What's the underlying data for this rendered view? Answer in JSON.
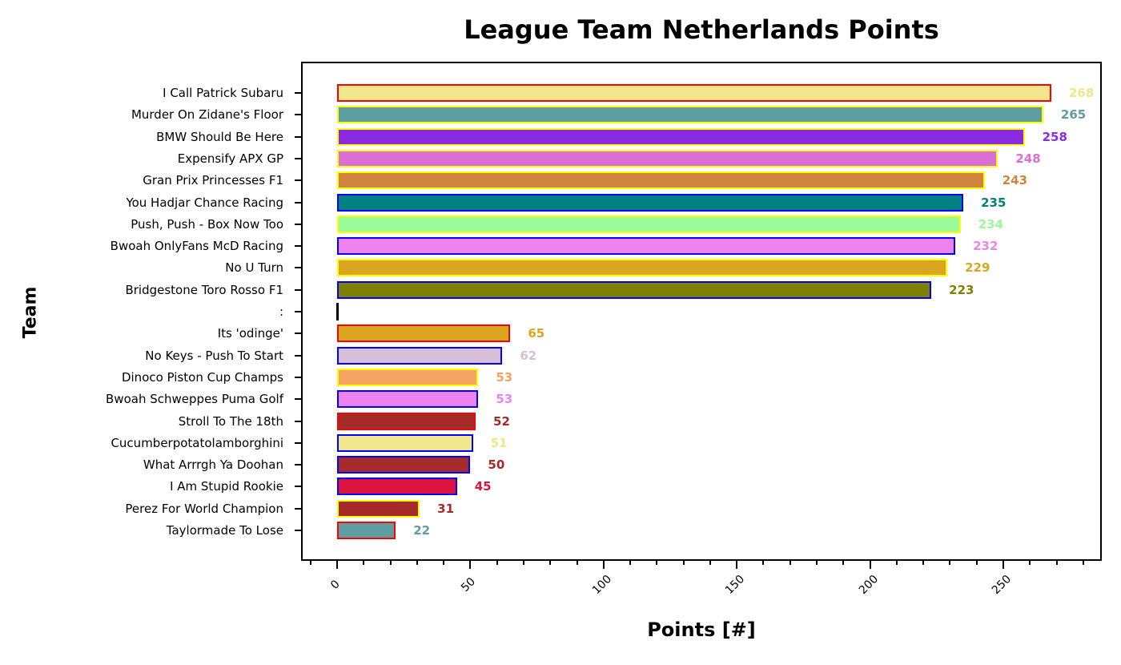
{
  "chart_data": {
    "type": "bar",
    "orientation": "horizontal",
    "title": "League Team Netherlands Points",
    "xlabel": "Points [#]",
    "ylabel": "Team",
    "xlim": [
      -10,
      287
    ],
    "xticks": [
      0,
      50,
      100,
      150,
      200,
      250
    ],
    "minor_tick_step": 10,
    "grid": false,
    "legend": null,
    "categories": [
      "I Call Patrick Subaru",
      "Murder On Zidane's Floor",
      "BMW Should Be Here",
      "Expensify APX GP",
      "Gran Prix Princesses F1",
      "You Hadjar Chance Racing",
      "Push, Push - Box Now Too",
      "Bwoah OnlyFans McD Racing",
      "No U Turn",
      "Bridgestone Toro Rosso F1",
      ":",
      "Its 'odinge'",
      "No Keys - Push To Start",
      "Dinoco Piston Cup Champs",
      "Bwoah Schweppes Puma Golf",
      "Stroll To The 18th",
      "Cucumberpotatolamborghini",
      "What Arrrgh Ya Doohan",
      "I Am Stupid Rookie",
      "Perez For World Champion",
      "Taylormade To Lose"
    ],
    "values": [
      268,
      265,
      258,
      248,
      243,
      235,
      234,
      232,
      229,
      223,
      null,
      65,
      62,
      53,
      53,
      52,
      51,
      50,
      45,
      31,
      22
    ],
    "bars": [
      {
        "team": "I Call Patrick Subaru",
        "value": 268,
        "fill": "#F0E68C",
        "edge": "#FF0000"
      },
      {
        "team": "Murder On Zidane's Floor",
        "value": 265,
        "fill": "#5F9EA0",
        "edge": "#FFFF00"
      },
      {
        "team": "BMW Should Be Here",
        "value": 258,
        "fill": "#8A2BE2",
        "edge": "#FFFF00"
      },
      {
        "team": "Expensify APX GP",
        "value": 248,
        "fill": "#DA70D6",
        "edge": "#FFFF00"
      },
      {
        "team": "Gran Prix Princesses F1",
        "value": 243,
        "fill": "#CD853F",
        "edge": "#FFFF00"
      },
      {
        "team": "You Hadjar Chance Racing",
        "value": 235,
        "fill": "#008080",
        "edge": "#0000FF"
      },
      {
        "team": "Push, Push - Box Now Too",
        "value": 234,
        "fill": "#98FB98",
        "edge": "#FFFF00"
      },
      {
        "team": "Bwoah OnlyFans McD Racing",
        "value": 232,
        "fill": "#EE82EE",
        "edge": "#0000FF"
      },
      {
        "team": "No U Turn",
        "value": 229,
        "fill": "#DAA520",
        "edge": "#FFFF00"
      },
      {
        "team": "Bridgestone Toro Rosso F1",
        "value": 223,
        "fill": "#808000",
        "edge": "#0000FF"
      },
      {
        "team": ":",
        "value": null,
        "fill": "#000000",
        "edge": "#000000",
        "separator": true
      },
      {
        "team": "Its 'odinge'",
        "value": 65,
        "fill": "#DAA520",
        "edge": "#FF0000"
      },
      {
        "team": "No Keys - Push To Start",
        "value": 62,
        "fill": "#D8BFD8",
        "edge": "#0000FF"
      },
      {
        "team": "Dinoco Piston Cup Champs",
        "value": 53,
        "fill": "#F4A460",
        "edge": "#FFFF00"
      },
      {
        "team": "Bwoah Schweppes Puma Golf",
        "value": 53,
        "fill": "#EE82EE",
        "edge": "#0000FF"
      },
      {
        "team": "Stroll To The 18th",
        "value": 52,
        "fill": "#A52A2A",
        "edge": "#FF0000"
      },
      {
        "team": "Cucumberpotatolamborghini",
        "value": 51,
        "fill": "#F0E68C",
        "edge": "#0000FF"
      },
      {
        "team": "What Arrrgh Ya Doohan",
        "value": 50,
        "fill": "#A52A2A",
        "edge": "#0000FF"
      },
      {
        "team": "I Am Stupid Rookie",
        "value": 45,
        "fill": "#DC143C",
        "edge": "#0000FF"
      },
      {
        "team": "Perez For World Champion",
        "value": 31,
        "fill": "#A52A2A",
        "edge": "#FFFF00"
      },
      {
        "team": "Taylormade To Lose",
        "value": 22,
        "fill": "#5F9EA0",
        "edge": "#FF0000"
      }
    ]
  }
}
